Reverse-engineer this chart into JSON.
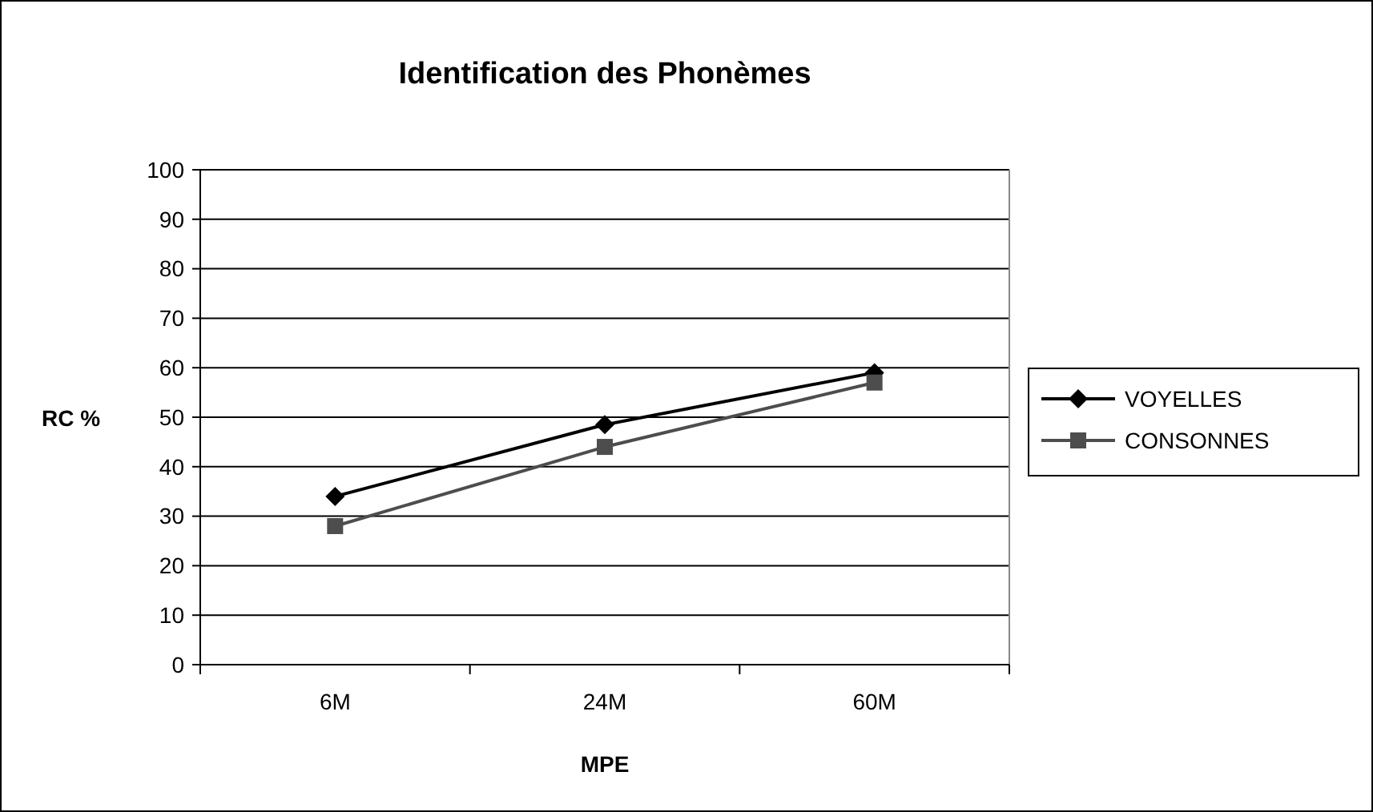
{
  "chart_data": {
    "type": "line",
    "title": "Identification des Phonèmes",
    "xlabel": "MPE",
    "ylabel": "RC %",
    "categories": [
      "6M",
      "24M",
      "60M"
    ],
    "series": [
      {
        "name": "VOYELLES",
        "color": "#000000",
        "marker": "diamond",
        "values": [
          34,
          48.5,
          59
        ]
      },
      {
        "name": "CONSONNES",
        "color": "#4d4d4d",
        "marker": "square",
        "values": [
          28,
          44,
          57
        ]
      }
    ],
    "ylim": [
      0,
      100
    ],
    "yticks": [
      0,
      10,
      20,
      30,
      40,
      50,
      60,
      70,
      80,
      90,
      100
    ],
    "grid": "y",
    "legend": "right"
  }
}
